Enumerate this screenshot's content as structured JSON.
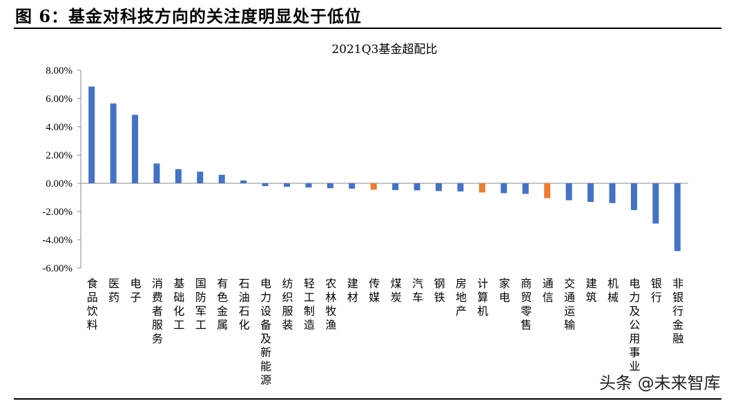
{
  "figure": {
    "title": "图 6：基金对科技方向的关注度明显处于低位",
    "watermark": "头条 @未来智库"
  },
  "colors": {
    "primary_bar": "#4472C4",
    "highlight_bar": "#ED7D31"
  },
  "chart_data": {
    "type": "bar",
    "title": "2021Q3基金超配比",
    "xlabel": "",
    "ylabel": "",
    "ylim": [
      -6,
      8
    ],
    "yticks": [
      8,
      6,
      4,
      2,
      0,
      -2,
      -4,
      -6
    ],
    "ytick_labels": [
      "8.00%",
      "6.00%",
      "4.00%",
      "2.00%",
      "0.00%",
      "-2.00%",
      "-4.00%",
      "-6.00%"
    ],
    "unit": "%",
    "categories": [
      "食品饮料",
      "医药",
      "电子",
      "消费者服务",
      "基础化工",
      "国防军工",
      "有色金属",
      "石油石化",
      "电力设备及新能源",
      "纺织服装",
      "轻工制造",
      "农林牧渔",
      "建材",
      "传媒",
      "煤炭",
      "汽车",
      "钢铁",
      "房地产",
      "计算机",
      "家电",
      "商贸零售",
      "通信",
      "交通运输",
      "建筑",
      "机械",
      "电力及公用事业",
      "银行",
      "非银行金融"
    ],
    "values": [
      6.85,
      5.65,
      4.85,
      1.4,
      1.0,
      0.82,
      0.6,
      0.2,
      -0.2,
      -0.25,
      -0.3,
      -0.35,
      -0.38,
      -0.45,
      -0.48,
      -0.5,
      -0.55,
      -0.58,
      -0.65,
      -0.7,
      -0.75,
      -1.05,
      -1.2,
      -1.32,
      -1.4,
      -1.9,
      -2.85,
      -4.8
    ],
    "highlighted": [
      "传媒",
      "计算机",
      "通信"
    ],
    "grid": false,
    "legend": "none"
  }
}
